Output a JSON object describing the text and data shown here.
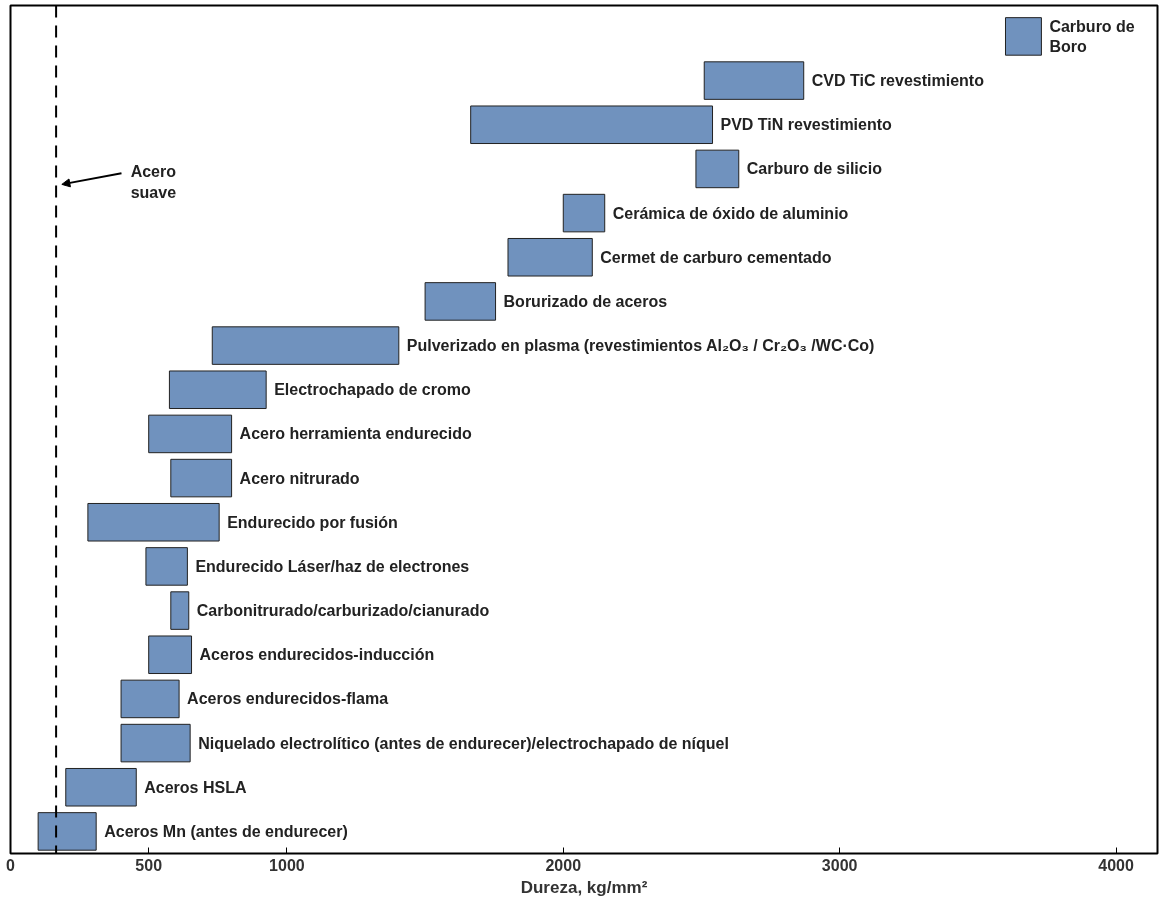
{
  "chart_data": {
    "type": "bar",
    "orientation": "horizontal",
    "xlabel": "Dureza, kg/mm²",
    "tick_labels": "x",
    "color": "#7092be",
    "categories": [
      "Carburo de\nBoro",
      "CVD TiC revestimiento",
      "PVD TiN revestimiento",
      "Carburo de silicio",
      "Cerámica de óxido de aluminio",
      "Cermet de carburo cementado",
      "Borurizado de aceros",
      "Pulverizado en plasma (revestimientos Al₂O₃ / Cr₂O₃ /WC·Co)",
      "Electrochapado de cromo",
      "Acero herramienta endurecido",
      "Acero nitrurado",
      "Endurecido por fusión",
      "Endurecido Láser/haz de electrones",
      "Carbonitrurado/carburizado/cianurado",
      "Aceros endurecidos-inducción",
      "Aceros endurecidos-flama",
      "Niquelado electrolítico (antes de endurecer)/electrochapado de níquel",
      "Aceros HSLA",
      "Aceros Mn (antes de endurecer)"
    ],
    "base": [
      3600,
      2510,
      1665,
      2480,
      2000,
      1800,
      1500,
      730,
      575,
      500,
      580,
      280,
      490,
      580,
      500,
      400,
      400,
      200,
      100
    ],
    "values": [
      130,
      360,
      875,
      155,
      150,
      305,
      255,
      675,
      350,
      300,
      220,
      475,
      150,
      65,
      155,
      210,
      250,
      255,
      210
    ],
    "xlim": [
      0,
      4150
    ],
    "xticks": [
      0,
      500,
      1000,
      2000,
      3000,
      4000
    ],
    "ref_lines": [
      {
        "axis": "x",
        "value": 165,
        "label": "Acero\nsuave",
        "line_style": "dashed",
        "color": "#000000"
      }
    ]
  }
}
